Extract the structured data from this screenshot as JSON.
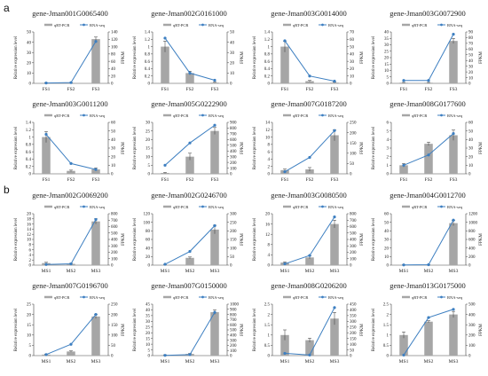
{
  "figure": {
    "panel_labels": [
      "a",
      "b"
    ],
    "legend": {
      "bar_label": "qRT-PCR",
      "line_label": "RNA-seq"
    },
    "y_left_label": "Relative expression level",
    "y_right_label": "FPKM",
    "colors": {
      "bar": "#a6a6a6",
      "line": "#3d7fc1",
      "axis": "#444444"
    }
  },
  "chart_data": [
    {
      "type": "bar",
      "panel": "a",
      "title": "gene-Jman001G0065400",
      "categories": [
        "FS1",
        "FS2",
        "FS3"
      ],
      "series": [
        {
          "name": "qRT-PCR",
          "type": "bar",
          "axis": "left",
          "values": [
            0.5,
            0.5,
            43
          ],
          "errors": [
            0.2,
            0.2,
            2
          ]
        },
        {
          "name": "RNA-seq",
          "type": "line",
          "axis": "right",
          "values": [
            1,
            2,
            114
          ]
        }
      ],
      "ylim": [
        0,
        50
      ],
      "yticks": [
        0,
        10,
        20,
        30,
        40,
        50
      ],
      "y2lim": [
        0,
        140
      ],
      "y2ticks": [
        0,
        20,
        40,
        60,
        80,
        100,
        120,
        140
      ]
    },
    {
      "type": "bar",
      "panel": "a",
      "title": "gene-Jman002G0161000",
      "categories": [
        "FS1",
        "FS2",
        "FS3"
      ],
      "series": [
        {
          "name": "qRT-PCR",
          "type": "bar",
          "axis": "left",
          "values": [
            1.0,
            0.28,
            0.02
          ],
          "errors": [
            0.15,
            0.05,
            0.01
          ]
        },
        {
          "name": "RNA-seq",
          "type": "line",
          "axis": "right",
          "values": [
            44,
            10,
            3
          ]
        }
      ],
      "ylim": [
        0,
        1.4
      ],
      "yticks": [
        0,
        0.2,
        0.4,
        0.6,
        0.8,
        1,
        1.2,
        1.4
      ],
      "y2lim": [
        0,
        50
      ],
      "y2ticks": [
        0,
        10,
        20,
        30,
        40,
        50
      ]
    },
    {
      "type": "bar",
      "panel": "a",
      "title": "gene-Jman003G0014000",
      "categories": [
        "FS1",
        "FS2",
        "FS3"
      ],
      "series": [
        {
          "name": "qRT-PCR",
          "type": "bar",
          "axis": "left",
          "values": [
            1.0,
            0.06,
            0.02
          ],
          "errors": [
            0.15,
            0.02,
            0.01
          ]
        },
        {
          "name": "RNA-seq",
          "type": "line",
          "axis": "right",
          "values": [
            58,
            10,
            3
          ]
        }
      ],
      "ylim": [
        0,
        1.4
      ],
      "yticks": [
        0,
        0.2,
        0.4,
        0.6,
        0.8,
        1,
        1.2,
        1.4
      ],
      "y2lim": [
        0,
        70
      ],
      "y2ticks": [
        0,
        10,
        20,
        30,
        40,
        50,
        60,
        70
      ]
    },
    {
      "type": "bar",
      "panel": "a",
      "title": "gene-Jman003G0072900",
      "categories": [
        "FS1",
        "FS2",
        "FS3"
      ],
      "series": [
        {
          "name": "qRT-PCR",
          "type": "bar",
          "axis": "left",
          "values": [
            0.5,
            0.5,
            33
          ],
          "errors": [
            0.2,
            0.2,
            2
          ]
        },
        {
          "name": "RNA-seq",
          "type": "line",
          "axis": "right",
          "values": [
            5,
            5,
            86
          ]
        }
      ],
      "ylim": [
        0,
        40
      ],
      "yticks": [
        0,
        5,
        10,
        15,
        20,
        25,
        30,
        35,
        40
      ],
      "y2lim": [
        0,
        90
      ],
      "y2ticks": [
        0,
        10,
        20,
        30,
        40,
        50,
        60,
        70,
        80,
        90
      ]
    },
    {
      "type": "bar",
      "panel": "a",
      "title": "gene-Jman003G0011200",
      "categories": [
        "FS1",
        "FS2",
        "FS3"
      ],
      "series": [
        {
          "name": "qRT-PCR",
          "type": "bar",
          "axis": "left",
          "values": [
            1.0,
            0.08,
            0.12
          ],
          "errors": [
            0.15,
            0.02,
            0.04
          ]
        },
        {
          "name": "RNA-seq",
          "type": "line",
          "axis": "right",
          "values": [
            46,
            12,
            5
          ]
        }
      ],
      "ylim": [
        0,
        1.4
      ],
      "yticks": [
        0,
        0.2,
        0.4,
        0.6,
        0.8,
        1,
        1.2,
        1.4
      ],
      "y2lim": [
        0,
        60
      ],
      "y2ticks": [
        0,
        10,
        20,
        30,
        40,
        50,
        60
      ]
    },
    {
      "type": "bar",
      "panel": "a",
      "title": "gene-Jman005G0222900",
      "categories": [
        "FS1",
        "FS2",
        "FS3"
      ],
      "series": [
        {
          "name": "qRT-PCR",
          "type": "bar",
          "axis": "left",
          "values": [
            0.5,
            10,
            25
          ],
          "errors": [
            0.3,
            2,
            2
          ]
        },
        {
          "name": "RNA-seq",
          "type": "line",
          "axis": "right",
          "values": [
            150,
            540,
            850
          ]
        }
      ],
      "ylim": [
        0,
        30
      ],
      "yticks": [
        0,
        5,
        10,
        15,
        20,
        25,
        30
      ],
      "y2lim": [
        0,
        900
      ],
      "y2ticks": [
        0,
        100,
        200,
        300,
        400,
        500,
        600,
        700,
        800,
        900
      ]
    },
    {
      "type": "bar",
      "panel": "a",
      "title": "gene-Jman007G0187200",
      "categories": [
        "FS1",
        "FS2",
        "FS3"
      ],
      "series": [
        {
          "name": "qRT-PCR",
          "type": "bar",
          "axis": "left",
          "values": [
            1.0,
            1.2,
            10.5
          ],
          "errors": [
            0.3,
            0.5,
            1.5
          ]
        },
        {
          "name": "RNA-seq",
          "type": "line",
          "axis": "right",
          "values": [
            10,
            80,
            210
          ]
        }
      ],
      "ylim": [
        0,
        14
      ],
      "yticks": [
        0,
        2,
        4,
        6,
        8,
        10,
        12,
        14
      ],
      "y2lim": [
        0,
        250
      ],
      "y2ticks": [
        0,
        50,
        100,
        150,
        200,
        250
      ]
    },
    {
      "type": "bar",
      "panel": "a",
      "title": "gene-Jman008G0177600",
      "categories": [
        "FS1",
        "FS2",
        "FS3"
      ],
      "series": [
        {
          "name": "qRT-PCR",
          "type": "bar",
          "axis": "left",
          "values": [
            1.0,
            3.5,
            4.5
          ],
          "errors": [
            0.2,
            0.2,
            0.6
          ]
        },
        {
          "name": "RNA-seq",
          "type": "line",
          "axis": "right",
          "values": [
            10,
            22,
            47
          ]
        }
      ],
      "ylim": [
        0,
        6
      ],
      "yticks": [
        0,
        1,
        2,
        3,
        4,
        5,
        6
      ],
      "y2lim": [
        0,
        60
      ],
      "y2ticks": [
        0,
        10,
        20,
        30,
        40,
        50,
        60
      ]
    },
    {
      "type": "bar",
      "panel": "b",
      "title": "gene-Jman002G0069200",
      "categories": [
        "MS1",
        "MS2",
        "MS3"
      ],
      "series": [
        {
          "name": "qRT-PCR",
          "type": "bar",
          "axis": "left",
          "values": [
            0.8,
            0.5,
            17
          ],
          "errors": [
            0.3,
            0.2,
            1
          ]
        },
        {
          "name": "RNA-seq",
          "type": "line",
          "axis": "right",
          "values": [
            10,
            20,
            710
          ]
        }
      ],
      "ylim": [
        0,
        20
      ],
      "yticks": [
        0,
        2,
        4,
        6,
        8,
        10,
        12,
        14,
        16,
        18,
        20
      ],
      "y2lim": [
        0,
        800
      ],
      "y2ticks": [
        0,
        100,
        200,
        300,
        400,
        500,
        600,
        700,
        800
      ]
    },
    {
      "type": "bar",
      "panel": "b",
      "title": "gene-Jman002G0246700",
      "categories": [
        "MS1",
        "MS2",
        "MS3"
      ],
      "series": [
        {
          "name": "qRT-PCR",
          "type": "bar",
          "axis": "left",
          "values": [
            0.5,
            17,
            83
          ],
          "errors": [
            0.2,
            2,
            10
          ]
        },
        {
          "name": "RNA-seq",
          "type": "line",
          "axis": "right",
          "values": [
            5,
            80,
            230
          ]
        }
      ],
      "ylim": [
        0,
        120
      ],
      "yticks": [
        0,
        20,
        40,
        60,
        80,
        100,
        120
      ],
      "y2lim": [
        0,
        300
      ],
      "y2ticks": [
        0,
        50,
        100,
        150,
        200,
        250,
        300
      ]
    },
    {
      "type": "bar",
      "panel": "b",
      "title": "gene-Jman003G0080500",
      "categories": [
        "MS1",
        "MS2",
        "MS3"
      ],
      "series": [
        {
          "name": "qRT-PCR",
          "type": "bar",
          "axis": "left",
          "values": [
            1.0,
            3.0,
            16
          ],
          "errors": [
            0.3,
            0.6,
            1.5
          ]
        },
        {
          "name": "RNA-seq",
          "type": "line",
          "axis": "right",
          "values": [
            20,
            150,
            750
          ]
        }
      ],
      "ylim": [
        0,
        20
      ],
      "yticks": [
        0,
        4,
        8,
        12,
        16,
        20
      ],
      "y2lim": [
        0,
        800
      ],
      "y2ticks": [
        0,
        100,
        200,
        300,
        400,
        500,
        600,
        700,
        800
      ]
    },
    {
      "type": "bar",
      "panel": "b",
      "title": "gene-Jman004G0012700",
      "categories": [
        "MS1",
        "MS2",
        "MS3"
      ],
      "series": [
        {
          "name": "qRT-PCR",
          "type": "bar",
          "axis": "left",
          "values": [
            0.3,
            0.3,
            49
          ],
          "errors": [
            0.1,
            0.1,
            3
          ]
        },
        {
          "name": "RNA-seq",
          "type": "line",
          "axis": "right",
          "values": [
            5,
            10,
            1050
          ]
        }
      ],
      "ylim": [
        0,
        60
      ],
      "yticks": [
        0,
        10,
        20,
        30,
        40,
        50,
        60
      ],
      "y2lim": [
        0,
        1200
      ],
      "y2ticks": [
        0,
        200,
        400,
        600,
        800,
        1000,
        1200
      ]
    },
    {
      "type": "bar",
      "panel": "b",
      "title": "gene-Jman007G0196700",
      "categories": [
        "MS1",
        "MS2",
        "MS3"
      ],
      "series": [
        {
          "name": "qRT-PCR",
          "type": "bar",
          "axis": "left",
          "values": [
            0.5,
            2.0,
            19
          ],
          "errors": [
            0.2,
            0.3,
            1
          ]
        },
        {
          "name": "RNA-seq",
          "type": "line",
          "axis": "right",
          "values": [
            5,
            55,
            200
          ]
        }
      ],
      "ylim": [
        0,
        25
      ],
      "yticks": [
        0,
        5,
        10,
        15,
        20,
        25
      ],
      "y2lim": [
        0,
        250
      ],
      "y2ticks": [
        0,
        50,
        100,
        150,
        200,
        250
      ]
    },
    {
      "type": "bar",
      "panel": "b",
      "title": "gene-Jman007G0150000",
      "categories": [
        "MS1",
        "MS2",
        "MS3"
      ],
      "series": [
        {
          "name": "qRT-PCR",
          "type": "bar",
          "axis": "left",
          "values": [
            0.5,
            1.5,
            38
          ],
          "errors": [
            0.2,
            0.4,
            2
          ]
        },
        {
          "name": "RNA-seq",
          "type": "line",
          "axis": "right",
          "values": [
            5,
            20,
            840
          ]
        }
      ],
      "ylim": [
        0,
        45
      ],
      "yticks": [
        0,
        5,
        10,
        15,
        20,
        25,
        30,
        35,
        40,
        45
      ],
      "y2lim": [
        0,
        1000
      ],
      "y2ticks": [
        0,
        100,
        200,
        300,
        400,
        500,
        600,
        700,
        800,
        900,
        1000
      ]
    },
    {
      "type": "bar",
      "panel": "b",
      "title": "gene-Jman008G0206200",
      "categories": [
        "MS1",
        "MS2",
        "MS3"
      ],
      "series": [
        {
          "name": "qRT-PCR",
          "type": "bar",
          "axis": "left",
          "values": [
            1.0,
            0.75,
            1.8
          ],
          "errors": [
            0.25,
            0.1,
            0.3
          ]
        },
        {
          "name": "RNA-seq",
          "type": "line",
          "axis": "right",
          "values": [
            20,
            5,
            420
          ]
        }
      ],
      "ylim": [
        0,
        2.5
      ],
      "yticks": [
        0,
        0.5,
        1,
        1.5,
        2,
        2.5
      ],
      "y2lim": [
        0,
        450
      ],
      "y2ticks": [
        0,
        50,
        100,
        150,
        200,
        250,
        300,
        350,
        400,
        450
      ]
    },
    {
      "type": "bar",
      "panel": "b",
      "title": "gene-Jman013G0175000",
      "categories": [
        "MS1",
        "MS2",
        "MS3"
      ],
      "series": [
        {
          "name": "qRT-PCR",
          "type": "bar",
          "axis": "left",
          "values": [
            1.0,
            1.65,
            2.0
          ],
          "errors": [
            0.15,
            0.05,
            0.15
          ]
        },
        {
          "name": "RNA-seq",
          "type": "line",
          "axis": "right",
          "values": [
            5,
            370,
            450
          ]
        }
      ],
      "ylim": [
        0,
        2.5
      ],
      "yticks": [
        0,
        0.5,
        1,
        1.5,
        2,
        2.5
      ],
      "y2lim": [
        0,
        500
      ],
      "y2ticks": [
        0,
        100,
        200,
        300,
        400,
        500
      ]
    }
  ]
}
